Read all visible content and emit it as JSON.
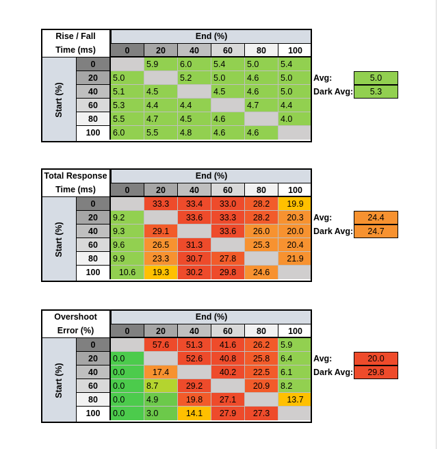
{
  "colors": {
    "header_fill": "#d6dce4",
    "col0": "#808080",
    "col20": "#a6a6a6",
    "col40": "#bfbfbf",
    "col60": "#d9d9d9",
    "col80": "#f2f2f2",
    "col100": "#ffffff",
    "diag": "#d0cece",
    "lime": "#92d050",
    "green": "#4ccb4c",
    "olive_green": "#6cc94a",
    "yellow_green": "#b4d42f",
    "yellow": "#ffc000",
    "orange": "#f79230",
    "red_orange": "#f25b2a",
    "red": "#ee4b2b"
  },
  "col_headers": [
    "0",
    "20",
    "40",
    "60",
    "80",
    "100"
  ],
  "row_headers": [
    "0",
    "20",
    "40",
    "60",
    "80",
    "100"
  ],
  "end_label": "End (%)",
  "start_label": "Start (%)",
  "avg_label": "Avg:",
  "dark_avg_label": "Dark Avg:",
  "tables": [
    {
      "title_line1": "Rise / Fall",
      "title_line2": "Time (ms)",
      "rows": [
        [
          "",
          "5.9",
          "6.0",
          "5.4",
          "5.0",
          "5.4"
        ],
        [
          "5.0",
          "",
          "5.2",
          "5.0",
          "4.6",
          "5.0"
        ],
        [
          "5.1",
          "4.5",
          "",
          "4.5",
          "4.6",
          "5.0"
        ],
        [
          "5.3",
          "4.4",
          "4.4",
          "",
          "4.7",
          "4.4"
        ],
        [
          "5.5",
          "4.7",
          "4.5",
          "4.6",
          "",
          "4.0"
        ],
        [
          "6.0",
          "5.5",
          "4.8",
          "4.6",
          "4.6",
          ""
        ]
      ],
      "colors": [
        [
          "diag",
          "lime",
          "lime",
          "lime",
          "lime",
          "lime"
        ],
        [
          "lime",
          "diag",
          "lime",
          "lime",
          "lime",
          "lime"
        ],
        [
          "lime",
          "lime",
          "diag",
          "lime",
          "lime",
          "lime"
        ],
        [
          "lime",
          "lime",
          "lime",
          "diag",
          "lime",
          "lime"
        ],
        [
          "lime",
          "lime",
          "lime",
          "lime",
          "diag",
          "lime"
        ],
        [
          "lime",
          "lime",
          "lime",
          "lime",
          "lime",
          "diag"
        ]
      ],
      "avg": "5.0",
      "dark_avg": "5.3",
      "avg_color": "lime",
      "dark_avg_color": "lime"
    },
    {
      "title_line1": "Total Response",
      "title_line2": "Time (ms)",
      "rows": [
        [
          "",
          "33.3",
          "33.4",
          "33.0",
          "28.2",
          "19.9"
        ],
        [
          "9.2",
          "",
          "33.6",
          "33.3",
          "28.2",
          "20.3"
        ],
        [
          "9.3",
          "29.1",
          "",
          "33.6",
          "26.0",
          "20.0"
        ],
        [
          "9.6",
          "26.5",
          "31.3",
          "",
          "25.3",
          "20.4"
        ],
        [
          "9.9",
          "23.3",
          "30.7",
          "27.8",
          "",
          "21.9"
        ],
        [
          "10.6",
          "19.3",
          "30.2",
          "29.8",
          "24.6",
          ""
        ]
      ],
      "colors": [
        [
          "diag",
          "red",
          "red",
          "red",
          "red_orange",
          "yellow"
        ],
        [
          "lime",
          "diag",
          "red",
          "red",
          "red_orange",
          "orange"
        ],
        [
          "lime",
          "red_orange",
          "diag",
          "red",
          "orange",
          "orange"
        ],
        [
          "lime",
          "orange",
          "red",
          "diag",
          "orange",
          "orange"
        ],
        [
          "lime",
          "orange",
          "red",
          "red_orange",
          "diag",
          "orange"
        ],
        [
          "lime",
          "yellow",
          "red",
          "red",
          "orange",
          "diag"
        ]
      ],
      "avg": "24.4",
      "dark_avg": "24.7",
      "avg_color": "orange",
      "dark_avg_color": "orange"
    },
    {
      "title_line1": "Overshoot",
      "title_line2": "Error (%)",
      "rows": [
        [
          "",
          "57.6",
          "51.3",
          "41.6",
          "26.2",
          "5.9"
        ],
        [
          "0.0",
          "",
          "52.6",
          "40.8",
          "25.8",
          "6.4"
        ],
        [
          "0.0",
          "17.4",
          "",
          "40.2",
          "22.5",
          "6.1"
        ],
        [
          "0.0",
          "8.7",
          "29.2",
          "",
          "20.9",
          "8.2"
        ],
        [
          "0.0",
          "4.9",
          "19.8",
          "27.1",
          "",
          "13.7"
        ],
        [
          "0.0",
          "3.0",
          "14.1",
          "27.9",
          "27.3",
          ""
        ]
      ],
      "colors": [
        [
          "diag",
          "red",
          "red",
          "red",
          "red_orange",
          "lime"
        ],
        [
          "green",
          "diag",
          "red",
          "red",
          "red_orange",
          "lime"
        ],
        [
          "green",
          "orange",
          "diag",
          "red",
          "red_orange",
          "lime"
        ],
        [
          "green",
          "yellow_green",
          "red",
          "diag",
          "red_orange",
          "lime"
        ],
        [
          "green",
          "olive_green",
          "red_orange",
          "red",
          "diag",
          "yellow"
        ],
        [
          "green",
          "olive_green",
          "yellow",
          "red",
          "red",
          "diag"
        ]
      ],
      "avg": "20.0",
      "dark_avg": "29.8",
      "avg_color": "red",
      "dark_avg_color": "red"
    }
  ]
}
